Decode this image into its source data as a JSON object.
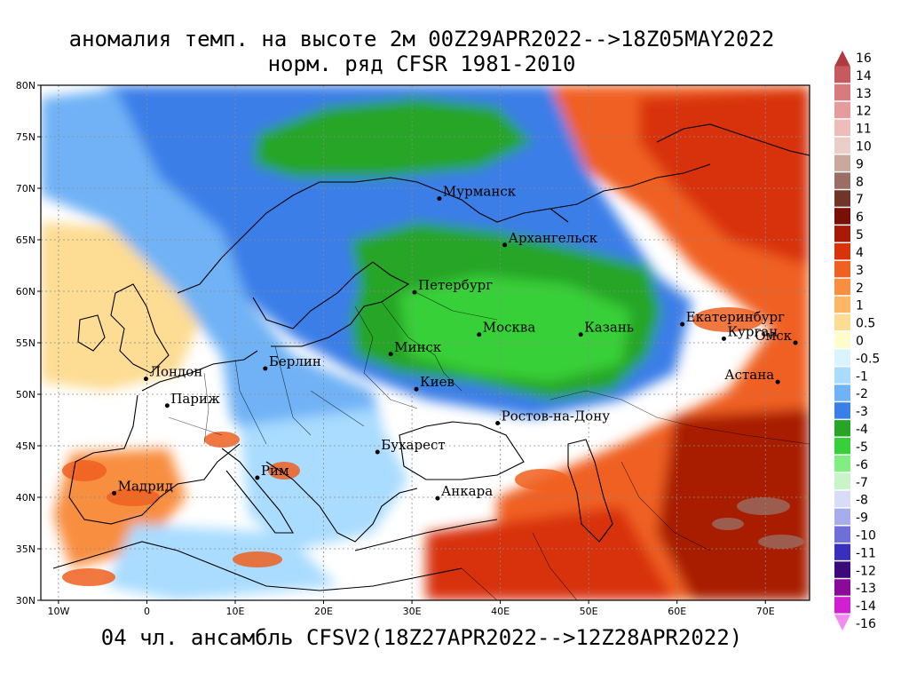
{
  "title": {
    "line1": "аномалия темп. на высоте 2м 00Z29APR2022-->18Z05MAY2022",
    "line2": "норм. ряд CFSR 1981-2010"
  },
  "footer": "04 чл. ансамбль CFSV2(18Z27APR2022-->12Z28APR2022)",
  "map": {
    "lon_range": [
      -12,
      75
    ],
    "lat_range": [
      30,
      80
    ],
    "lat_ticks": [
      {
        "value": 80,
        "label": "80N"
      },
      {
        "value": 75,
        "label": "75N"
      },
      {
        "value": 70,
        "label": "70N"
      },
      {
        "value": 65,
        "label": "65N"
      },
      {
        "value": 60,
        "label": "60N"
      },
      {
        "value": 55,
        "label": "55N"
      },
      {
        "value": 50,
        "label": "50N"
      },
      {
        "value": 45,
        "label": "45N"
      },
      {
        "value": 40,
        "label": "40N"
      },
      {
        "value": 35,
        "label": "35N"
      },
      {
        "value": 30,
        "label": "30N"
      }
    ],
    "lon_ticks": [
      {
        "value": -10,
        "label": "10W"
      },
      {
        "value": 0,
        "label": "0"
      },
      {
        "value": 10,
        "label": "10E"
      },
      {
        "value": 20,
        "label": "20E"
      },
      {
        "value": 30,
        "label": "30E"
      },
      {
        "value": 40,
        "label": "40E"
      },
      {
        "value": 50,
        "label": "50E"
      },
      {
        "value": 60,
        "label": "60E"
      },
      {
        "value": 70,
        "label": "70E"
      }
    ],
    "cities": [
      {
        "name": "Мурманск",
        "lon": 33.1,
        "lat": 69.0
      },
      {
        "name": "Архангельск",
        "lon": 40.5,
        "lat": 64.5
      },
      {
        "name": "Петербург",
        "lon": 30.3,
        "lat": 59.9
      },
      {
        "name": "Москва",
        "lon": 37.6,
        "lat": 55.8
      },
      {
        "name": "Казань",
        "lon": 49.1,
        "lat": 55.8
      },
      {
        "name": "Екатеринбург",
        "lon": 60.6,
        "lat": 56.8
      },
      {
        "name": "Курган",
        "lon": 65.3,
        "lat": 55.4
      },
      {
        "name": "Омск",
        "lon": 73.4,
        "lat": 55.0
      },
      {
        "name": "Астана",
        "lon": 71.4,
        "lat": 51.2
      },
      {
        "name": "Минск",
        "lon": 27.6,
        "lat": 53.9
      },
      {
        "name": "Киев",
        "lon": 30.5,
        "lat": 50.5
      },
      {
        "name": "Берлин",
        "lon": 13.4,
        "lat": 52.5
      },
      {
        "name": "Лондон",
        "lon": -0.1,
        "lat": 51.5
      },
      {
        "name": "Париж",
        "lon": 2.3,
        "lat": 48.9
      },
      {
        "name": "Ростов-на-Дону",
        "lon": 39.7,
        "lat": 47.2
      },
      {
        "name": "Бухарест",
        "lon": 26.1,
        "lat": 44.4
      },
      {
        "name": "Рим",
        "lon": 12.5,
        "lat": 41.9
      },
      {
        "name": "Мадрид",
        "lon": -3.7,
        "lat": 40.4
      },
      {
        "name": "Анкара",
        "lon": 32.9,
        "lat": 39.9
      }
    ]
  },
  "legend": [
    {
      "label": "16",
      "color": "#b03a3e"
    },
    {
      "label": "14",
      "color": "#c75a5e"
    },
    {
      "label": "13",
      "color": "#d87b7e"
    },
    {
      "label": "12",
      "color": "#e69c9d"
    },
    {
      "label": "11",
      "color": "#efbcbc"
    },
    {
      "label": "10",
      "color": "#e9cfc8"
    },
    {
      "label": "9",
      "color": "#c9a89e"
    },
    {
      "label": "8",
      "color": "#9a6e62"
    },
    {
      "label": "7",
      "color": "#6e3528"
    },
    {
      "label": "6",
      "color": "#7a0f05"
    },
    {
      "label": "5",
      "color": "#a81a05"
    },
    {
      "label": "4",
      "color": "#d8330a"
    },
    {
      "label": "3",
      "color": "#f06020"
    },
    {
      "label": "2",
      "color": "#f88e40"
    },
    {
      "label": "1",
      "color": "#fcb764"
    },
    {
      "label": "0.5",
      "color": "#fddc93"
    },
    {
      "label": "0",
      "color": "#fffccc"
    },
    {
      "label": "-0.5",
      "color": "#d9f4ff"
    },
    {
      "label": "-1",
      "color": "#a9dcff"
    },
    {
      "label": "-2",
      "color": "#6fb2f5"
    },
    {
      "label": "-3",
      "color": "#3a7ee8"
    },
    {
      "label": "-4",
      "color": "#26a526"
    },
    {
      "label": "-5",
      "color": "#38d038"
    },
    {
      "label": "-6",
      "color": "#80ee80"
    },
    {
      "label": "-7",
      "color": "#c8f5c8"
    },
    {
      "label": "-8",
      "color": "#d9dcf7"
    },
    {
      "label": "-9",
      "color": "#a7acec"
    },
    {
      "label": "-10",
      "color": "#6e6fd8"
    },
    {
      "label": "-11",
      "color": "#3a2fbd"
    },
    {
      "label": "-12",
      "color": "#3a0a7a"
    },
    {
      "label": "-13",
      "color": "#8c0a9a"
    },
    {
      "label": "-14",
      "color": "#d020d0"
    },
    {
      "label": "-16",
      "color": "#f08cf0"
    }
  ]
}
